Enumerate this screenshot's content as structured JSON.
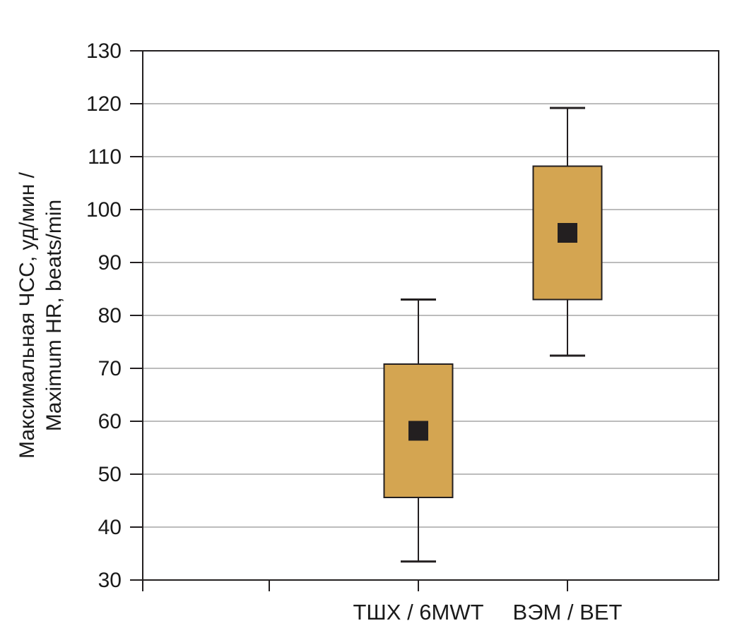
{
  "chart_data": {
    "type": "boxplot",
    "ylabel_line1": "Максимальная ЧСС, уд/мин /",
    "ylabel_line2": "Maximum HR, beats/min",
    "ylim": [
      30,
      130
    ],
    "yticks": [
      30,
      40,
      50,
      60,
      70,
      80,
      90,
      100,
      110,
      120,
      130
    ],
    "grid": true,
    "categories": [
      "ТШХ / 6MWT",
      "ВЭМ / BET"
    ],
    "series": [
      {
        "category": "ТШХ / 6MWT",
        "whisker_low": 33.5,
        "q1": 45.6,
        "median": 58.2,
        "q3": 70.8,
        "whisker_high": 83.0
      },
      {
        "category": "ВЭМ / BET",
        "whisker_low": 72.4,
        "q1": 83.0,
        "median": 95.6,
        "q3": 108.2,
        "whisker_high": 119.2
      }
    ],
    "colors": {
      "box": "#d4a551",
      "marker": "#231f20",
      "grid": "#a6a6a6",
      "axis": "#231f20"
    }
  }
}
